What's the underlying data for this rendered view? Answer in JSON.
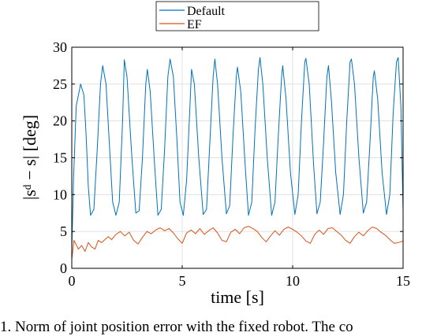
{
  "chart_data": {
    "type": "line",
    "xlabel": "time [s]",
    "ylabel": "|sᵈ − s| [deg]",
    "xlim": [
      0,
      15
    ],
    "ylim": [
      0,
      30
    ],
    "xticks": [
      0,
      5,
      10,
      15
    ],
    "yticks": [
      0,
      5,
      10,
      15,
      20,
      25,
      30
    ],
    "grid": true,
    "legend_position": "top-center",
    "series": [
      {
        "name": "Default",
        "color": "#0072BD",
        "x": [
          0,
          0.08,
          0.2,
          0.4,
          0.55,
          0.65,
          0.75,
          0.85,
          1.0,
          1.15,
          1.3,
          1.4,
          1.55,
          1.7,
          1.85,
          2.0,
          2.15,
          2.3,
          2.38,
          2.5,
          2.7,
          2.9,
          3.05,
          3.2,
          3.35,
          3.42,
          3.55,
          3.75,
          3.9,
          4.05,
          4.2,
          4.35,
          4.45,
          4.6,
          4.75,
          4.9,
          5.05,
          5.2,
          5.35,
          5.42,
          5.55,
          5.75,
          5.95,
          6.1,
          6.25,
          6.4,
          6.48,
          6.6,
          6.8,
          7.0,
          7.15,
          7.3,
          7.45,
          7.5,
          7.65,
          7.85,
          8.0,
          8.15,
          8.3,
          8.45,
          8.52,
          8.65,
          8.85,
          9.05,
          9.2,
          9.35,
          9.5,
          9.55,
          9.7,
          9.9,
          10.1,
          10.25,
          10.4,
          10.55,
          10.6,
          10.75,
          10.95,
          11.1,
          11.25,
          11.4,
          11.55,
          11.62,
          11.75,
          11.95,
          12.15,
          12.3,
          12.45,
          12.6,
          12.66,
          12.8,
          13.0,
          13.2,
          13.35,
          13.5,
          13.65,
          13.7,
          13.85,
          14.05,
          14.25,
          14.4,
          14.55,
          14.7,
          14.78,
          14.9,
          15.0
        ],
        "y": [
          2.5,
          12,
          22,
          25,
          23.5,
          18,
          11,
          7.2,
          8,
          16,
          25,
          27.5,
          25,
          17,
          9,
          7.2,
          9,
          20,
          28.3,
          26,
          16,
          7.5,
          7.8,
          15,
          25,
          27,
          24,
          14,
          7.2,
          8,
          16,
          26,
          28.4,
          26,
          18,
          9,
          7.2,
          12,
          22,
          27,
          25,
          15,
          7.3,
          8,
          17,
          26,
          28.4,
          25,
          15,
          7.4,
          8.5,
          18,
          26,
          27.3,
          24,
          14,
          7.2,
          9,
          19,
          27,
          28.6,
          25,
          15,
          7.2,
          9,
          18,
          26,
          27.5,
          23,
          13,
          7.3,
          10,
          20,
          28,
          28.5,
          25,
          14,
          7.4,
          9,
          17,
          26,
          27.5,
          23,
          13,
          7.3,
          10,
          20,
          28,
          28.4,
          25,
          15,
          7.5,
          9,
          17,
          26,
          26.8,
          23,
          13,
          7.3,
          10,
          21,
          28,
          28.6,
          22,
          7.8
        ]
      },
      {
        "name": "EF",
        "color": "#D95319",
        "x": [
          0,
          0.05,
          0.1,
          0.2,
          0.3,
          0.45,
          0.6,
          0.75,
          0.9,
          1.05,
          1.2,
          1.35,
          1.5,
          1.65,
          1.8,
          2.0,
          2.2,
          2.4,
          2.6,
          2.8,
          3.0,
          3.2,
          3.4,
          3.6,
          3.8,
          4.0,
          4.2,
          4.4,
          4.6,
          4.8,
          5.0,
          5.2,
          5.4,
          5.6,
          5.8,
          6.0,
          6.2,
          6.4,
          6.6,
          6.8,
          7.0,
          7.2,
          7.4,
          7.6,
          7.8,
          8.0,
          8.2,
          8.4,
          8.6,
          8.8,
          9.0,
          9.2,
          9.4,
          9.6,
          9.8,
          10.0,
          10.2,
          10.4,
          10.6,
          10.8,
          11.0,
          11.2,
          11.4,
          11.6,
          11.8,
          12.0,
          12.2,
          12.4,
          12.6,
          12.8,
          13.0,
          13.2,
          13.4,
          13.6,
          13.8,
          14.0,
          14.2,
          14.4,
          14.6,
          14.8,
          15.0
        ],
        "y": [
          1.2,
          2.5,
          3.8,
          3.2,
          2.6,
          3.1,
          2.3,
          3.5,
          2.9,
          2.6,
          3.8,
          3.5,
          3.9,
          4.3,
          3.9,
          4.6,
          5.0,
          4.4,
          4.9,
          3.8,
          3.3,
          4.2,
          5.0,
          4.7,
          5.2,
          5.5,
          5.1,
          5.4,
          4.8,
          4.0,
          3.4,
          4.8,
          5.2,
          4.7,
          5.4,
          4.6,
          5.1,
          5.5,
          4.8,
          3.8,
          3.6,
          4.9,
          5.3,
          4.7,
          5.5,
          5.7,
          5.4,
          5.0,
          4.2,
          3.6,
          4.4,
          5.1,
          4.5,
          5.3,
          5.6,
          5.3,
          4.9,
          4.4,
          3.7,
          3.4,
          4.6,
          5.2,
          4.6,
          5.4,
          5.5,
          5.0,
          4.5,
          3.8,
          3.4,
          4.3,
          4.9,
          4.4,
          5.1,
          5.6,
          5.4,
          4.9,
          4.5,
          3.9,
          3.4,
          3.5,
          3.7
        ]
      }
    ]
  },
  "caption": "1.   Norm of joint position error with the fixed robot. The co"
}
